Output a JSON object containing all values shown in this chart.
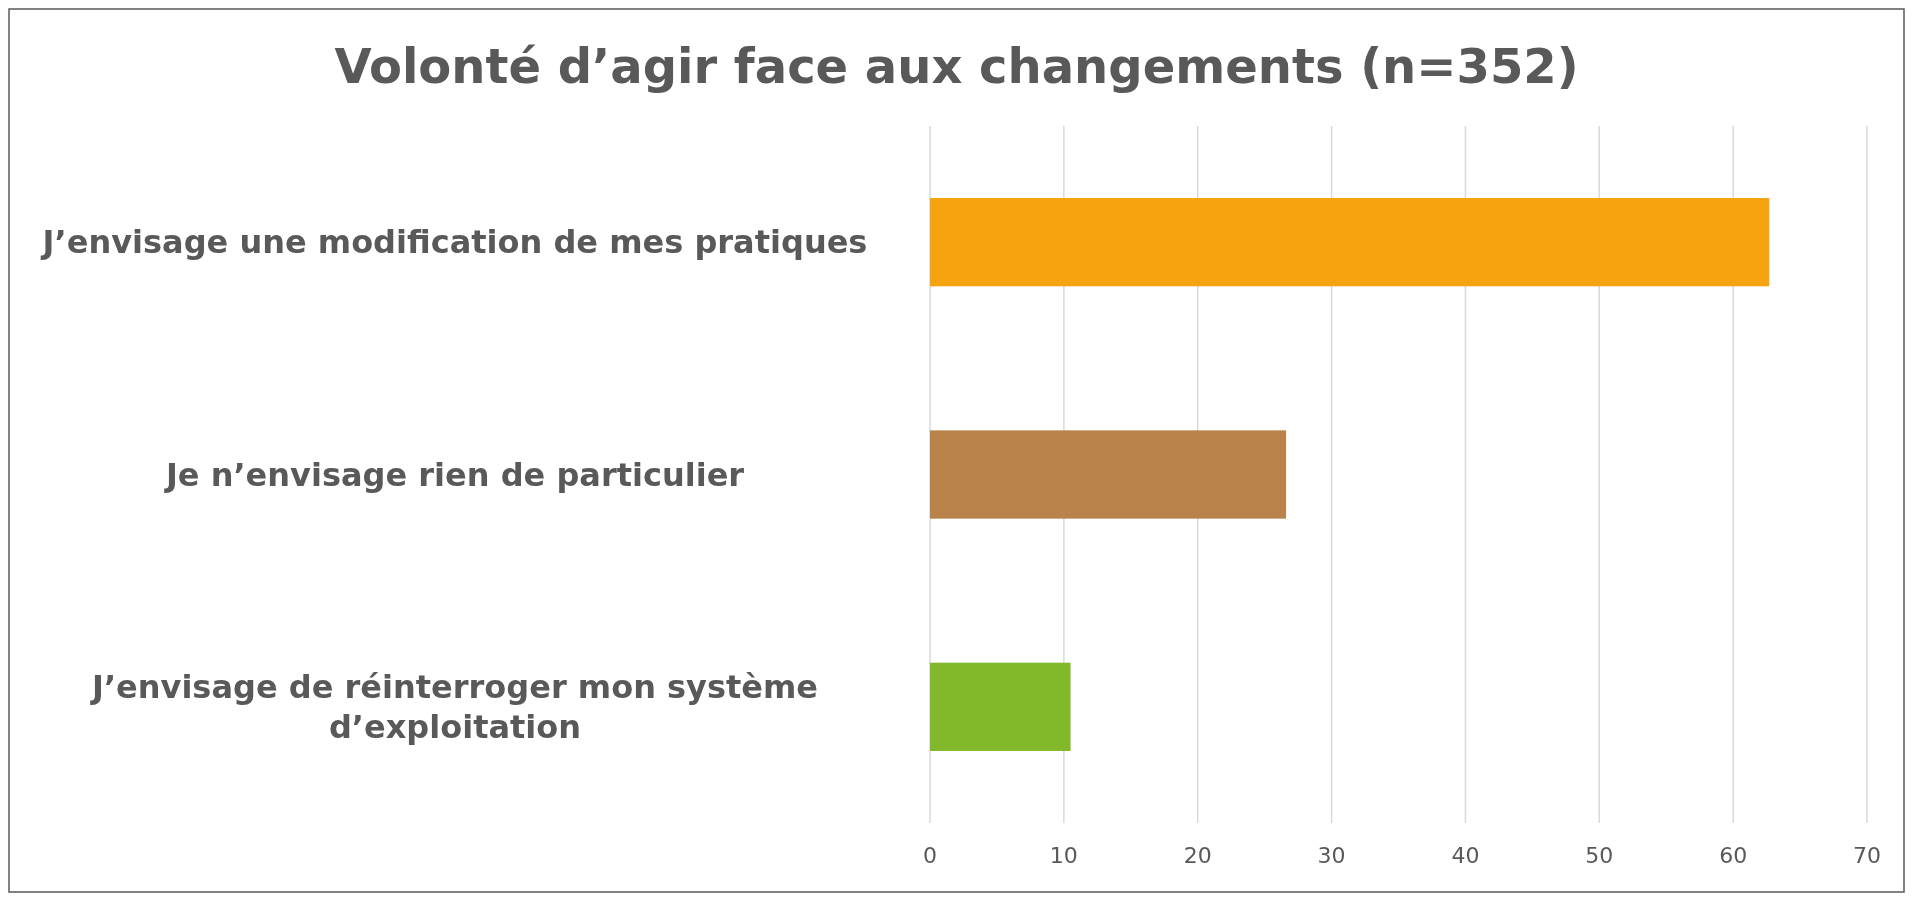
{
  "chart_data": {
    "type": "bar",
    "orientation": "horizontal",
    "title": "Volonté d’agir face aux changements (n=352)",
    "categories": [
      "J’envisage une modification de mes pratiques",
      "Je n’envisage rien de particulier",
      "J’envisage de réinterroger mon système d’exploitation"
    ],
    "values": [
      62.7,
      26.6,
      10.5
    ],
    "colors": [
      "#f5a30f",
      "#b9824b",
      "#82b92a"
    ],
    "xlim": [
      0,
      70
    ],
    "xticks": [
      0,
      10,
      20,
      30,
      40,
      50,
      60,
      70
    ],
    "grid": "x"
  }
}
